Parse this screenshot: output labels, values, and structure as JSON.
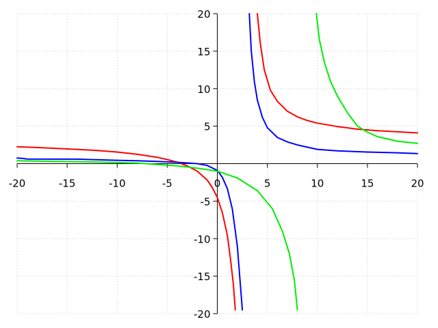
{
  "chart_data": {
    "type": "line",
    "title": "",
    "xlabel": "",
    "ylabel": "",
    "xlim": [
      -20,
      20
    ],
    "ylim": [
      -20,
      20
    ],
    "grid": true,
    "x_ticks": [
      -20,
      -15,
      -10,
      -5,
      0,
      5,
      10,
      15,
      20
    ],
    "y_ticks": [
      -20,
      -15,
      -10,
      -5,
      0,
      5,
      10,
      15,
      20
    ],
    "x_tick_labels": [
      "-20",
      "-15",
      "-10",
      "-5",
      "0",
      "5",
      "10",
      "15",
      "20"
    ],
    "y_tick_labels": [
      "-20",
      "-15",
      "-10",
      "-5",
      "0",
      "5",
      "10",
      "15",
      "20"
    ],
    "series": [
      {
        "color": "#ff0000",
        "segments": [
          [
            [
              -20,
              2.25
            ],
            [
              -18,
              2.15
            ],
            [
              -16,
              2.03
            ],
            [
              -14,
              1.9
            ],
            [
              -12,
              1.75
            ],
            [
              -10,
              1.55
            ],
            [
              -8,
              1.25
            ],
            [
              -6,
              0.85
            ],
            [
              -5,
              0.55
            ],
            [
              -4,
              0.2
            ],
            [
              -3,
              -0.3
            ],
            [
              -2,
              -1.0
            ],
            [
              -1,
              -2.2
            ],
            [
              -0.5,
              -3.2
            ],
            [
              0,
              -4.5
            ],
            [
              0.5,
              -6.5
            ],
            [
              1,
              -9.5
            ],
            [
              1.3,
              -12.5
            ],
            [
              1.6,
              -16.0
            ],
            [
              1.8,
              -19.5
            ]
          ],
          [
            [
              4.0,
              20
            ],
            [
              4.3,
              16
            ],
            [
              4.7,
              12.5
            ],
            [
              5.3,
              9.8
            ],
            [
              6,
              8.3
            ],
            [
              7,
              7.0
            ],
            [
              8,
              6.25
            ],
            [
              9,
              5.75
            ],
            [
              10,
              5.4
            ],
            [
              12,
              4.95
            ],
            [
              14,
              4.6
            ],
            [
              16,
              4.4
            ],
            [
              18,
              4.25
            ],
            [
              20,
              4.1
            ]
          ]
        ]
      },
      {
        "color": "#0000ff",
        "segments": [
          [
            [
              -20,
              0.75
            ],
            [
              -19.5,
              0.7
            ],
            [
              -19,
              0.62
            ],
            [
              -16,
              0.6
            ],
            [
              -14,
              0.6
            ],
            [
              -12,
              0.52
            ],
            [
              -10,
              0.45
            ],
            [
              -8,
              0.38
            ],
            [
              -6,
              0.3
            ],
            [
              -4,
              0.18
            ],
            [
              -2,
              0.0
            ],
            [
              -1,
              -0.25
            ],
            [
              0,
              -0.9
            ],
            [
              0.5,
              -1.8
            ],
            [
              1,
              -3.3
            ],
            [
              1.5,
              -6.0
            ],
            [
              2,
              -11.0
            ],
            [
              2.3,
              -16.0
            ],
            [
              2.5,
              -19.5
            ]
          ],
          [
            [
              3.2,
              20
            ],
            [
              3.4,
              15
            ],
            [
              3.7,
              11
            ],
            [
              4,
              8.5
            ],
            [
              4.5,
              6.2
            ],
            [
              5,
              4.8
            ],
            [
              6,
              3.5
            ],
            [
              7,
              2.9
            ],
            [
              8,
              2.5
            ],
            [
              10,
              1.9
            ],
            [
              12,
              1.7
            ],
            [
              15,
              1.55
            ],
            [
              18,
              1.45
            ],
            [
              20,
              1.35
            ]
          ]
        ]
      },
      {
        "color": "#00ee00",
        "segments": [
          [
            [
              -20,
              0.38
            ],
            [
              -16,
              0.3
            ],
            [
              -12,
              0.22
            ],
            [
              -8,
              0.08
            ],
            [
              -4,
              -0.3
            ],
            [
              -2,
              -0.6
            ],
            [
              0,
              -1.0
            ],
            [
              2,
              -1.9
            ],
            [
              4,
              -3.6
            ],
            [
              5.5,
              -6.0
            ],
            [
              6.5,
              -9.0
            ],
            [
              7.2,
              -12.0
            ],
            [
              7.7,
              -15.5
            ],
            [
              8.0,
              -19.5
            ]
          ],
          [
            [
              9.9,
              20
            ],
            [
              10.2,
              16.5
            ],
            [
              10.7,
              13.5
            ],
            [
              11.3,
              11.0
            ],
            [
              12,
              9.0
            ],
            [
              13,
              6.8
            ],
            [
              14,
              5.0
            ],
            [
              15,
              4.2
            ],
            [
              16,
              3.6
            ],
            [
              18,
              3.0
            ],
            [
              20,
              2.7
            ]
          ]
        ]
      }
    ]
  }
}
